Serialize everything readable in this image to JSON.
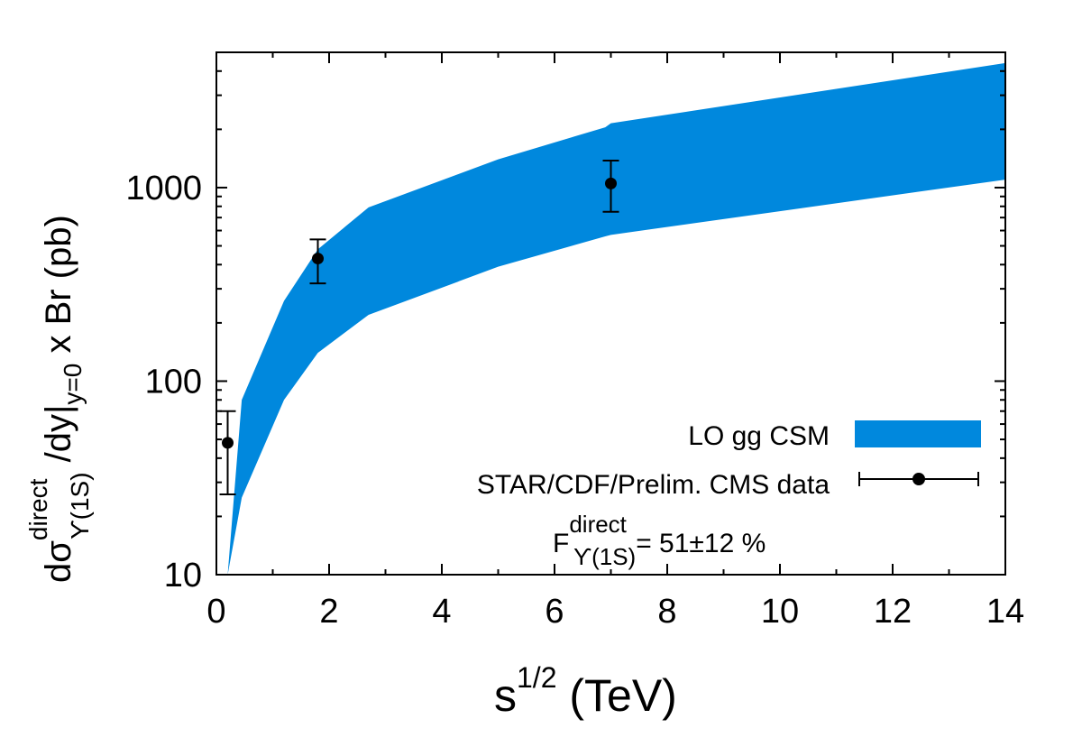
{
  "chart_data": {
    "type": "area",
    "x_axis": {
      "scale": "linear",
      "range": [
        0,
        14
      ],
      "ticks": [
        0,
        2,
        4,
        6,
        8,
        10,
        12,
        14
      ],
      "tick_labels": [
        "0",
        "2",
        "4",
        "6",
        "8",
        "10",
        "12",
        "14"
      ]
    },
    "y_axis": {
      "scale": "log",
      "range": [
        10,
        5000
      ],
      "ticks": [
        10,
        100,
        1000
      ],
      "tick_labels": [
        "10",
        "100",
        "1000"
      ]
    },
    "xlabel": {
      "base": "s",
      "sup": "1/2",
      "rest": " (TeV)"
    },
    "ylabel": {
      "d1": "d",
      "sigma": "σ",
      "sup_direct": "direct",
      "sub_upsilon": "ϒ(1S)",
      "dy": " /dy|",
      "sub_y0": "y=0",
      "rest": " x Br (pb)"
    },
    "band": {
      "name": "LO gg CSM",
      "color": "#0088dd",
      "x": [
        0.2,
        0.45,
        1.2,
        1.8,
        2.7,
        5.0,
        6.9,
        7.0,
        14.0
      ],
      "upper": [
        10,
        80,
        260,
        480,
        790,
        1400,
        2050,
        2150,
        4400
      ],
      "lower": [
        10,
        25,
        80,
        140,
        220,
        390,
        560,
        570,
        1100
      ]
    },
    "series": [
      {
        "name": "STAR/CDF/Prelim. CMS data",
        "color": "#000000",
        "points": [
          {
            "x": 0.2,
            "y": 48,
            "ylow": 26,
            "yhigh": 70
          },
          {
            "x": 1.8,
            "y": 430,
            "ylow": 320,
            "yhigh": 540
          },
          {
            "x": 7.0,
            "y": 1050,
            "ylow": 750,
            "yhigh": 1380
          }
        ]
      }
    ],
    "legend": {
      "placement": "bottom-right",
      "entries": [
        "LO gg CSM",
        "STAR/CDF/Prelim. CMS data"
      ]
    },
    "annotation": {
      "base": "F",
      "sup": "direct",
      "sub": "ϒ(1S)",
      "rest": "= 51±12 %"
    }
  }
}
